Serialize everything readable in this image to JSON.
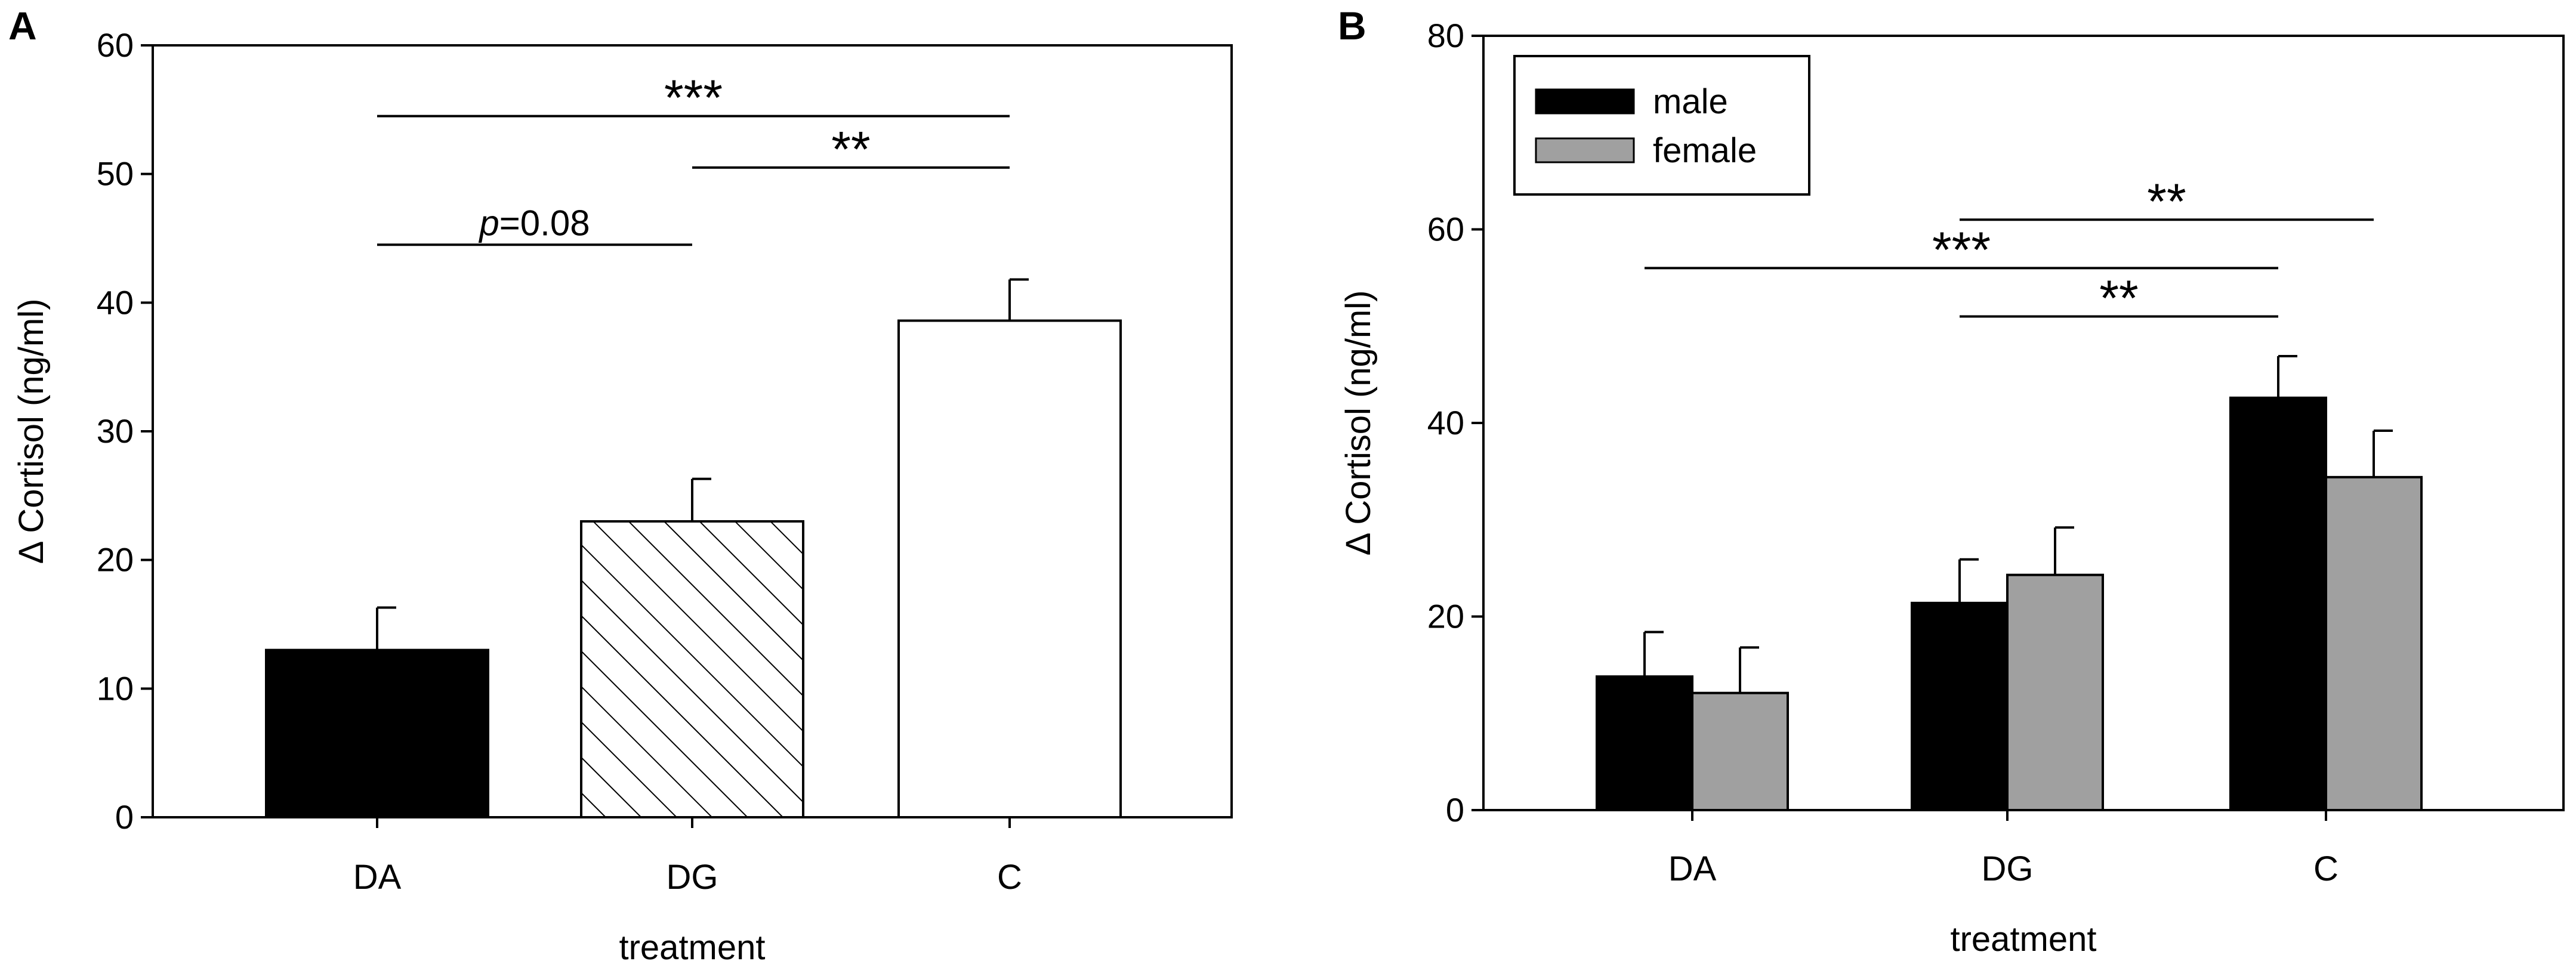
{
  "colors": {
    "male": "#000000",
    "female": "#a0a0a0",
    "axis": "#000000",
    "background": "#ffffff"
  },
  "chart_data": [
    {
      "panel_label": "A",
      "type": "bar",
      "categories": [
        "DA",
        "DG",
        "C"
      ],
      "values": [
        13,
        23,
        38.6
      ],
      "errors": [
        3.3,
        3.3,
        3.2
      ],
      "fills": [
        "solid-black",
        "diagonal-hatch",
        "white"
      ],
      "xlabel": "treatment",
      "ylabel": "Δ Cortisol (ng/ml)",
      "ylim": [
        0,
        60
      ],
      "yticks": [
        "0",
        "10",
        "20",
        "30",
        "40",
        "50",
        "60"
      ],
      "significance": [
        {
          "from": "DA",
          "to": "C",
          "y": 54.5,
          "label": "***"
        },
        {
          "from": "DG",
          "to": "C",
          "y": 50.5,
          "label": "**"
        },
        {
          "from": "DA",
          "to": "DG",
          "y": 44.5,
          "label_italic": "p",
          "label_rest": "=0.08"
        }
      ]
    },
    {
      "panel_label": "B",
      "type": "bar",
      "categories": [
        "DA",
        "DG",
        "C"
      ],
      "series": [
        {
          "name": "male",
          "values": [
            13.8,
            21.4,
            42.6
          ],
          "errors": [
            4.6,
            4.5,
            4.3
          ]
        },
        {
          "name": "female",
          "values": [
            12.1,
            24.3,
            34.4
          ],
          "errors": [
            4.7,
            4.9,
            4.8
          ]
        }
      ],
      "xlabel": "treatment",
      "ylabel": "Δ Cortisol (ng/ml)",
      "ylim": [
        0,
        80
      ],
      "yticks": [
        "0",
        "20",
        "40",
        "60",
        "80"
      ],
      "legend": {
        "position": "top-left",
        "entries": [
          "male",
          "female"
        ]
      },
      "significance": [
        {
          "from": "DG",
          "to": "C",
          "y": 61,
          "label": "**"
        },
        {
          "from": "DA",
          "to": "C",
          "y": 56,
          "label": "***"
        },
        {
          "from": "DG",
          "to": "C",
          "y": 51,
          "label": "**"
        }
      ]
    }
  ]
}
